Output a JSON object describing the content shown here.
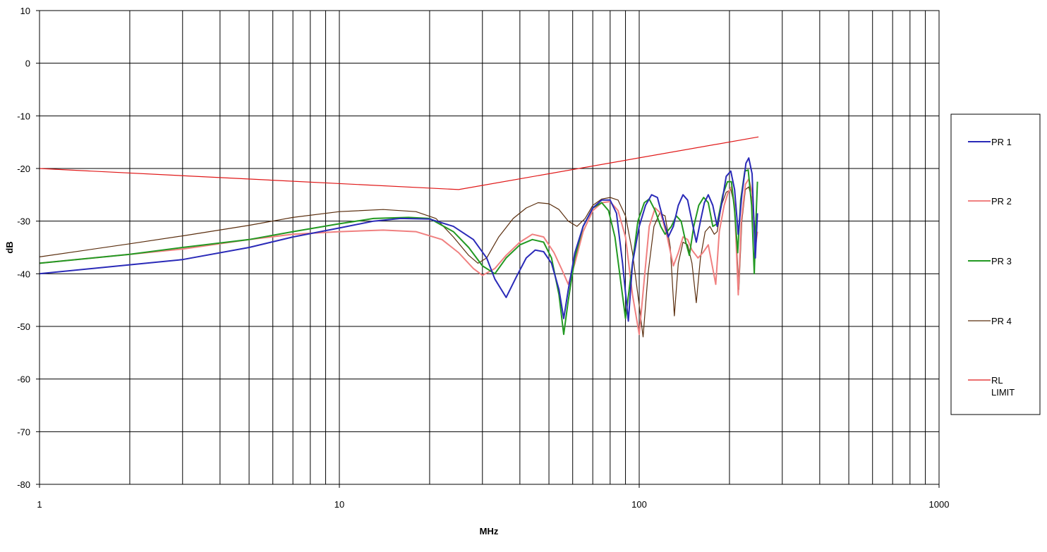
{
  "chart_data": {
    "type": "line",
    "title": "",
    "xlabel": "MHz",
    "ylabel": "dB",
    "x_scale": "log",
    "xlim": [
      1,
      1000
    ],
    "ylim": [
      -80,
      10
    ],
    "x_ticks": [
      1,
      10,
      100,
      1000
    ],
    "x_tick_labels": [
      "1",
      "10",
      "100",
      "1000"
    ],
    "y_ticks": [
      10,
      0,
      -10,
      -20,
      -30,
      -40,
      -50,
      -60,
      -70,
      -80
    ],
    "y_tick_labels": [
      "10",
      "0",
      "-10",
      "-20",
      "-30",
      "-40",
      "-50",
      "-60",
      "-70",
      "-80"
    ],
    "grid": true,
    "legend_position": "right",
    "series": [
      {
        "name": "PR 1",
        "color": "#2a2ab8",
        "points": [
          [
            1,
            -40
          ],
          [
            2,
            -38.3
          ],
          [
            3,
            -37.3
          ],
          [
            5,
            -35
          ],
          [
            7,
            -33
          ],
          [
            10,
            -31.3
          ],
          [
            13,
            -30
          ],
          [
            16,
            -29.5
          ],
          [
            20,
            -29.6
          ],
          [
            24,
            -31
          ],
          [
            28,
            -33.5
          ],
          [
            31,
            -37
          ],
          [
            33,
            -41
          ],
          [
            36,
            -44.5
          ],
          [
            39,
            -40.5
          ],
          [
            42,
            -37
          ],
          [
            45,
            -35.5
          ],
          [
            48,
            -35.8
          ],
          [
            51,
            -38
          ],
          [
            54,
            -43
          ],
          [
            56,
            -48.5
          ],
          [
            58,
            -43
          ],
          [
            61,
            -36
          ],
          [
            65,
            -31
          ],
          [
            70,
            -27.5
          ],
          [
            75,
            -26
          ],
          [
            80,
            -26
          ],
          [
            84,
            -28.5
          ],
          [
            88,
            -38
          ],
          [
            92,
            -49
          ],
          [
            95,
            -38
          ],
          [
            100,
            -31
          ],
          [
            105,
            -27
          ],
          [
            110,
            -25
          ],
          [
            115,
            -25.5
          ],
          [
            120,
            -29.5
          ],
          [
            125,
            -33
          ],
          [
            130,
            -31
          ],
          [
            135,
            -27
          ],
          [
            140,
            -25
          ],
          [
            145,
            -26
          ],
          [
            150,
            -30
          ],
          [
            155,
            -34
          ],
          [
            160,
            -30
          ],
          [
            165,
            -26.5
          ],
          [
            170,
            -25
          ],
          [
            176,
            -27
          ],
          [
            182,
            -31
          ],
          [
            188,
            -27
          ],
          [
            195,
            -21.5
          ],
          [
            202,
            -20.5
          ],
          [
            208,
            -24
          ],
          [
            214,
            -32.5
          ],
          [
            220,
            -25
          ],
          [
            227,
            -19
          ],
          [
            232,
            -18
          ],
          [
            238,
            -21
          ],
          [
            244,
            -37
          ],
          [
            248,
            -28.5
          ]
        ]
      },
      {
        "name": "PR 2",
        "color": "#f08080",
        "points": [
          [
            1,
            -38
          ],
          [
            2,
            -36.3
          ],
          [
            3,
            -35.3
          ],
          [
            5,
            -33.5
          ],
          [
            7,
            -32.5
          ],
          [
            10,
            -32
          ],
          [
            14,
            -31.7
          ],
          [
            18,
            -32
          ],
          [
            22,
            -33.5
          ],
          [
            25,
            -36
          ],
          [
            28,
            -39
          ],
          [
            30,
            -40.3
          ],
          [
            33,
            -39
          ],
          [
            36,
            -36.5
          ],
          [
            40,
            -34
          ],
          [
            44,
            -32.5
          ],
          [
            48,
            -33
          ],
          [
            52,
            -36
          ],
          [
            55,
            -39
          ],
          [
            58,
            -42
          ],
          [
            61,
            -38
          ],
          [
            65,
            -32
          ],
          [
            70,
            -28
          ],
          [
            75,
            -26.5
          ],
          [
            80,
            -26.3
          ],
          [
            85,
            -28
          ],
          [
            90,
            -33
          ],
          [
            95,
            -44
          ],
          [
            100,
            -51.5
          ],
          [
            104,
            -41
          ],
          [
            108,
            -31
          ],
          [
            113,
            -27.5
          ],
          [
            118,
            -28.5
          ],
          [
            124,
            -33
          ],
          [
            130,
            -38.5
          ],
          [
            135,
            -36
          ],
          [
            140,
            -33
          ],
          [
            145,
            -33.5
          ],
          [
            150,
            -35.5
          ],
          [
            157,
            -37
          ],
          [
            163,
            -36
          ],
          [
            170,
            -34.5
          ],
          [
            176,
            -39
          ],
          [
            180,
            -42
          ],
          [
            185,
            -32
          ],
          [
            192,
            -27
          ],
          [
            198,
            -24.5
          ],
          [
            203,
            -23.5
          ],
          [
            208,
            -27
          ],
          [
            214,
            -44
          ],
          [
            219,
            -30
          ],
          [
            226,
            -23
          ],
          [
            232,
            -22
          ],
          [
            238,
            -24.5
          ],
          [
            244,
            -35
          ],
          [
            248,
            -32
          ]
        ]
      },
      {
        "name": "PR 3",
        "color": "#229922",
        "points": [
          [
            1,
            -38
          ],
          [
            2,
            -36.3
          ],
          [
            3,
            -35
          ],
          [
            5,
            -33.5
          ],
          [
            7,
            -32
          ],
          [
            10,
            -30.5
          ],
          [
            13,
            -29.5
          ],
          [
            17,
            -29.3
          ],
          [
            20,
            -29.5
          ],
          [
            24,
            -32
          ],
          [
            27,
            -35
          ],
          [
            30,
            -38.5
          ],
          [
            33,
            -40
          ],
          [
            36,
            -37
          ],
          [
            40,
            -34.5
          ],
          [
            44,
            -33.5
          ],
          [
            48,
            -34
          ],
          [
            51,
            -37
          ],
          [
            54,
            -44
          ],
          [
            56,
            -51.5
          ],
          [
            58,
            -45
          ],
          [
            61,
            -37
          ],
          [
            65,
            -31
          ],
          [
            70,
            -27.5
          ],
          [
            75,
            -26.5
          ],
          [
            79,
            -28
          ],
          [
            83,
            -33
          ],
          [
            87,
            -42
          ],
          [
            90,
            -48.5
          ],
          [
            94,
            -40
          ],
          [
            99,
            -30
          ],
          [
            104,
            -26.5
          ],
          [
            108,
            -25.8
          ],
          [
            113,
            -28
          ],
          [
            118,
            -31
          ],
          [
            122,
            -32.5
          ],
          [
            128,
            -31
          ],
          [
            133,
            -29
          ],
          [
            138,
            -30
          ],
          [
            143,
            -34
          ],
          [
            147,
            -36.5
          ],
          [
            152,
            -31
          ],
          [
            158,
            -27
          ],
          [
            164,
            -25.5
          ],
          [
            170,
            -26.5
          ],
          [
            176,
            -31
          ],
          [
            182,
            -30.5
          ],
          [
            190,
            -25
          ],
          [
            197,
            -22.5
          ],
          [
            203,
            -22.5
          ],
          [
            208,
            -28
          ],
          [
            213,
            -36
          ],
          [
            218,
            -26
          ],
          [
            225,
            -20.5
          ],
          [
            231,
            -20.3
          ],
          [
            237,
            -27
          ],
          [
            242,
            -40
          ],
          [
            245,
            -30
          ],
          [
            248,
            -22.5
          ]
        ]
      },
      {
        "name": "PR 4",
        "color": "#5a2e0e",
        "points": [
          [
            1,
            -36.8
          ],
          [
            2,
            -34.3
          ],
          [
            3,
            -32.8
          ],
          [
            5,
            -30.8
          ],
          [
            7,
            -29.3
          ],
          [
            10,
            -28.2
          ],
          [
            14,
            -27.8
          ],
          [
            18,
            -28.2
          ],
          [
            21,
            -29.5
          ],
          [
            24,
            -33
          ],
          [
            27,
            -36.5
          ],
          [
            29,
            -38
          ],
          [
            31,
            -37
          ],
          [
            34,
            -33
          ],
          [
            38,
            -29.5
          ],
          [
            42,
            -27.5
          ],
          [
            46,
            -26.5
          ],
          [
            50,
            -26.7
          ],
          [
            54,
            -27.8
          ],
          [
            58,
            -30
          ],
          [
            62,
            -31
          ],
          [
            66,
            -29.5
          ],
          [
            70,
            -27
          ],
          [
            75,
            -25.8
          ],
          [
            80,
            -25.5
          ],
          [
            85,
            -26
          ],
          [
            90,
            -29
          ],
          [
            95,
            -36
          ],
          [
            100,
            -46
          ],
          [
            103,
            -52
          ],
          [
            107,
            -40
          ],
          [
            112,
            -31
          ],
          [
            117,
            -28.5
          ],
          [
            122,
            -29
          ],
          [
            127,
            -35
          ],
          [
            131,
            -48
          ],
          [
            135,
            -38
          ],
          [
            140,
            -34
          ],
          [
            145,
            -34.5
          ],
          [
            150,
            -38
          ],
          [
            155,
            -45.5
          ],
          [
            160,
            -37
          ],
          [
            166,
            -32
          ],
          [
            172,
            -31
          ],
          [
            178,
            -32.5
          ],
          [
            182,
            -32
          ],
          [
            188,
            -27
          ],
          [
            195,
            -24.5
          ],
          [
            202,
            -24
          ],
          [
            208,
            -27
          ],
          [
            215,
            -43
          ],
          [
            220,
            -30
          ],
          [
            226,
            -24
          ],
          [
            232,
            -23.5
          ],
          [
            238,
            -26
          ],
          [
            244,
            -32
          ],
          [
            248,
            -29
          ]
        ]
      },
      {
        "name": "RL\nLIMIT",
        "color": "#e01818",
        "points": [
          [
            1,
            -20
          ],
          [
            25,
            -24
          ],
          [
            250,
            -14
          ]
        ]
      }
    ]
  }
}
